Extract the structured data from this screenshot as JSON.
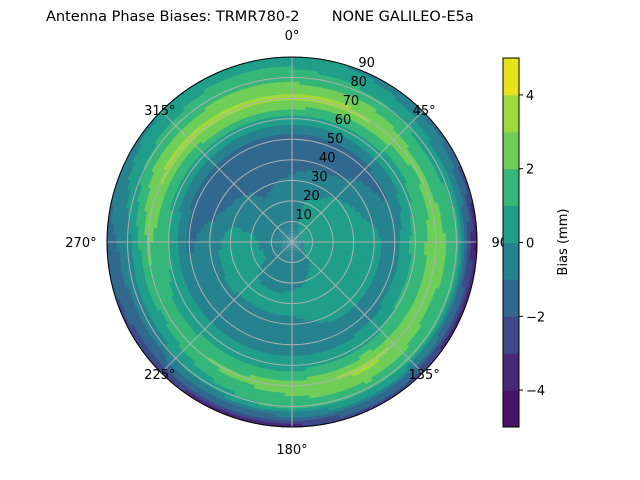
{
  "chart_data": {
    "type": "heatmap",
    "subtype": "polar-contourf",
    "title": "Antenna Phase Biases: TRMR780-2       NONE GALILEO-E5a",
    "theta_zero": "top",
    "theta_direction": "clockwise",
    "theta_ticks": [
      "0°",
      "45°",
      "90°",
      "135°",
      "180°",
      "225°",
      "270°",
      "315°"
    ],
    "radial_ticks": [
      "10",
      "20",
      "30",
      "40",
      "50",
      "60",
      "70",
      "80",
      "90"
    ],
    "radial_range": [
      0,
      90
    ],
    "grid": true,
    "colorbar": {
      "label": "Bias (mm)",
      "levels": [
        -5,
        -4,
        -3,
        -2,
        -1,
        0,
        1,
        2,
        3,
        4,
        5
      ],
      "ticks": [
        "−4",
        "−2",
        "0",
        "2",
        "4"
      ],
      "tick_values": [
        -4,
        -2,
        0,
        2,
        4
      ],
      "colors": [
        "#471365",
        "#482878",
        "#3e4989",
        "#31688e",
        "#26828e",
        "#1f9e89",
        "#35b779",
        "#6ece58",
        "#a0da39",
        "#e5e419"
      ],
      "placement": "right"
    },
    "azimuth_deg": [
      0,
      30,
      60,
      90,
      120,
      150,
      180,
      210,
      240,
      270,
      300,
      330
    ],
    "zenith_deg": [
      0,
      10,
      20,
      30,
      40,
      50,
      60,
      70,
      80,
      90
    ],
    "values_mm": [
      [
        -0.5,
        -0.5,
        -0.5,
        -0.5,
        -0.5,
        -0.5,
        -0.5,
        -0.5,
        -0.5,
        -0.5,
        -0.5,
        -0.5
      ],
      [
        -0.5,
        0.3,
        0.5,
        0.5,
        0.3,
        -0.3,
        -0.5,
        -0.5,
        -0.3,
        -0.5,
        -0.5,
        -0.5
      ],
      [
        -0.5,
        0.3,
        0.5,
        0.5,
        0.3,
        0.2,
        -0.3,
        -0.8,
        0.3,
        0.3,
        -0.5,
        -0.8
      ],
      [
        -0.8,
        -0.3,
        0.3,
        0.5,
        0.5,
        0.5,
        0.5,
        0.5,
        0.5,
        0.5,
        -0.5,
        -1.2
      ],
      [
        -1.5,
        -1.2,
        -0.5,
        0.3,
        0.3,
        0.3,
        -0.3,
        -0.3,
        -0.2,
        -0.5,
        -1.5,
        -1.5
      ],
      [
        -1.5,
        -1.5,
        -1.2,
        -0.5,
        -0.5,
        -0.5,
        -0.5,
        -0.5,
        -0.5,
        -1.2,
        -1.5,
        -1.5
      ],
      [
        0.5,
        0.5,
        0.5,
        1.5,
        1.2,
        0.5,
        0.5,
        0.5,
        0.5,
        1.2,
        0.5,
        0.5
      ],
      [
        3.4,
        3.2,
        2.2,
        2.5,
        2.5,
        3.4,
        2.5,
        2.2,
        1.5,
        2.2,
        3.3,
        3.4
      ],
      [
        1.5,
        1.2,
        0.5,
        1.5,
        1.2,
        1.5,
        1.5,
        0.5,
        -0.5,
        -0.5,
        1.2,
        1.5
      ],
      [
        0.5,
        -0.5,
        -1.5,
        -4.5,
        -3.5,
        -2.5,
        -3.5,
        -3.5,
        -2.5,
        -1.5,
        -0.5,
        0.5
      ]
    ]
  }
}
